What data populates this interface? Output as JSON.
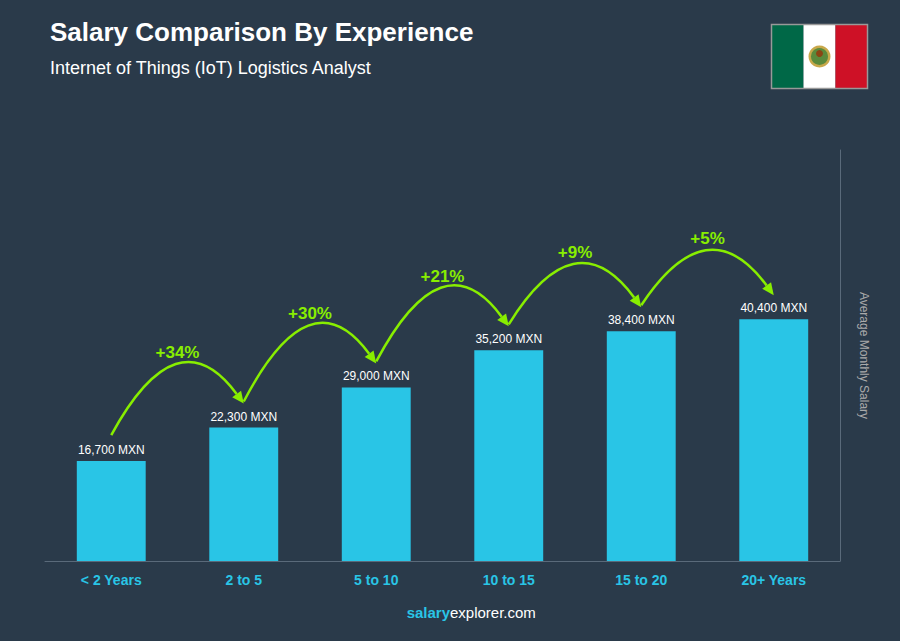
{
  "chart_data": {
    "type": "bar",
    "title": "Salary Comparison By Experience",
    "subtitle": "Internet of Things (IoT) Logistics Analyst",
    "categories": [
      "< 2 Years",
      "2 to 5",
      "5 to 10",
      "10 to 15",
      "15 to 20",
      "20+ Years"
    ],
    "values": [
      16700,
      22300,
      29000,
      35200,
      38400,
      40400
    ],
    "value_labels": [
      "16,700 MXN",
      "22,300 MXN",
      "29,000 MXN",
      "35,200 MXN",
      "38,400 MXN",
      "40,400 MXN"
    ],
    "data_labels": true,
    "color": "#29c5e6",
    "ylabel": "Average Monthly Salary",
    "ylim": [
      0,
      68680
    ],
    "tick_labels": "x",
    "grid": false,
    "annotations": [
      {
        "from": "< 2 Years",
        "to": "2 to 5",
        "text": "+34%"
      },
      {
        "from": "2 to 5",
        "to": "5 to 10",
        "text": "+30%"
      },
      {
        "from": "5 to 10",
        "to": "10 to 15",
        "text": "+21%"
      },
      {
        "from": "10 to 15",
        "to": "15 to 20",
        "text": "+9%"
      },
      {
        "from": "15 to 20",
        "to": "20+ Years",
        "text": "+5%"
      }
    ],
    "footer": [
      "salary",
      "explorer.com"
    ]
  }
}
